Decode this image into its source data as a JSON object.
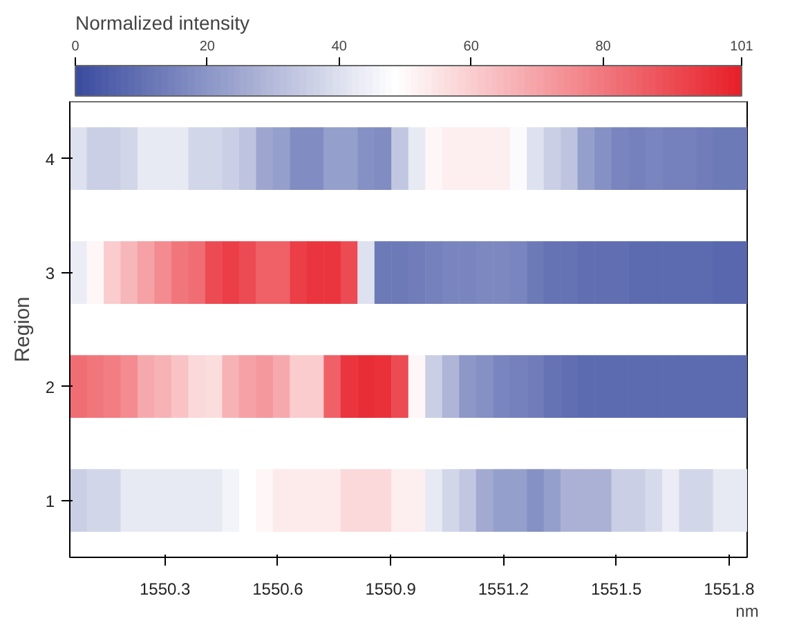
{
  "chart_data": {
    "type": "heatmap",
    "clabel": "Normalized intensity",
    "xlabel": "nm",
    "ylabel": "Region",
    "x": [
      1550.07,
      1550.115,
      1550.16,
      1550.205,
      1550.25,
      1550.295,
      1550.34,
      1550.385,
      1550.43,
      1550.475,
      1550.52,
      1550.565,
      1550.61,
      1550.655,
      1550.7,
      1550.745,
      1550.79,
      1550.835,
      1550.88,
      1550.925,
      1550.97,
      1551.015,
      1551.06,
      1551.105,
      1551.15,
      1551.195,
      1551.24,
      1551.285,
      1551.33,
      1551.375,
      1551.42,
      1551.465,
      1551.51,
      1551.555,
      1551.6,
      1551.645,
      1551.69,
      1551.735,
      1551.78,
      1551.825
    ],
    "xlim": [
      1550.047,
      1551.848
    ],
    "xticks": [
      1550.3,
      1550.6,
      1550.9,
      1551.2,
      1551.5,
      1551.8
    ],
    "y_categories": [
      "4",
      "3",
      "2",
      "1"
    ],
    "cells": [
      [
        40,
        35,
        35,
        37,
        42,
        42,
        42,
        37,
        37,
        35,
        32,
        24,
        22,
        17,
        17,
        22,
        22,
        18,
        17,
        33,
        42,
        50,
        52,
        52,
        52,
        52,
        47,
        40,
        35,
        32,
        22,
        18,
        15,
        14,
        15,
        14,
        14,
        13,
        12,
        12
      ],
      [
        43,
        50,
        60,
        65,
        70,
        75,
        80,
        82,
        90,
        93,
        90,
        85,
        85,
        93,
        95,
        95,
        90,
        40,
        12,
        12,
        13,
        14,
        15,
        15,
        16,
        16,
        15,
        12,
        10,
        10,
        9,
        9,
        9,
        8,
        8,
        8,
        8,
        8,
        7,
        7
      ],
      [
        82,
        80,
        78,
        75,
        68,
        66,
        62,
        57,
        56,
        66,
        70,
        72,
        68,
        60,
        60,
        85,
        95,
        97,
        96,
        90,
        50,
        35,
        28,
        20,
        18,
        15,
        14,
        13,
        10,
        9,
        8,
        8,
        8,
        8,
        8,
        8,
        8,
        8,
        8,
        8
      ],
      [
        35,
        37,
        37,
        42,
        42,
        42,
        42,
        42,
        42,
        45,
        48,
        50,
        53,
        53,
        53,
        53,
        58,
        58,
        58,
        52,
        52,
        42,
        37,
        33,
        25,
        22,
        22,
        18,
        22,
        27,
        27,
        27,
        35,
        35,
        38,
        43,
        37,
        37,
        42,
        42
      ]
    ],
    "clim": [
      0,
      101
    ],
    "cticks": [
      0,
      20,
      40,
      60,
      80,
      101
    ]
  }
}
